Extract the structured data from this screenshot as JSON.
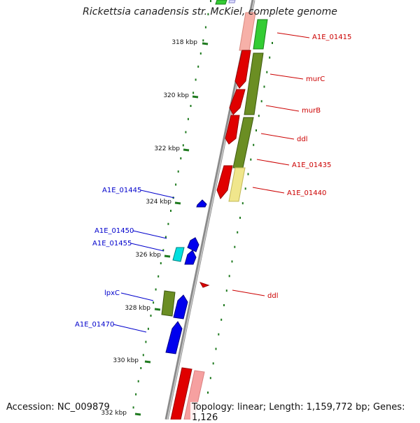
{
  "title": "Rickettsia canadensis str. McKiel, complete genome",
  "footer": {
    "accession_label": "Accession:",
    "accession": "NC_009879",
    "topology_label": "Topology:",
    "topology": "linear",
    "length_label": "Length:",
    "length": "1,159,772 bp",
    "genes_label": "Genes:",
    "genes": "1,126"
  },
  "colors": {
    "backbone": "#808080",
    "tick": "#1f7a1f",
    "forward_label": "#cc0000",
    "reverse_label": "#0000cc"
  },
  "ticks": [
    "318 kbp",
    "320 kbp",
    "322 kbp",
    "324 kbp",
    "326 kbp",
    "328 kbp",
    "330 kbp",
    "332 kbp"
  ],
  "genes": [
    {
      "label": "A1E_01415",
      "strand": "forward"
    },
    {
      "label": "murC",
      "strand": "forward"
    },
    {
      "label": "murB",
      "strand": "forward"
    },
    {
      "label": "ddl",
      "strand": "forward"
    },
    {
      "label": "A1E_01435",
      "strand": "forward"
    },
    {
      "label": "A1E_01440",
      "strand": "forward"
    },
    {
      "label": "A1E_01445",
      "strand": "reverse"
    },
    {
      "label": "A1E_01450",
      "strand": "reverse"
    },
    {
      "label": "A1E_01455",
      "strand": "reverse"
    },
    {
      "label": "ddl",
      "strand": "forward"
    },
    {
      "label": "lpxC",
      "strand": "reverse"
    },
    {
      "label": "A1E_01470",
      "strand": "reverse"
    }
  ]
}
